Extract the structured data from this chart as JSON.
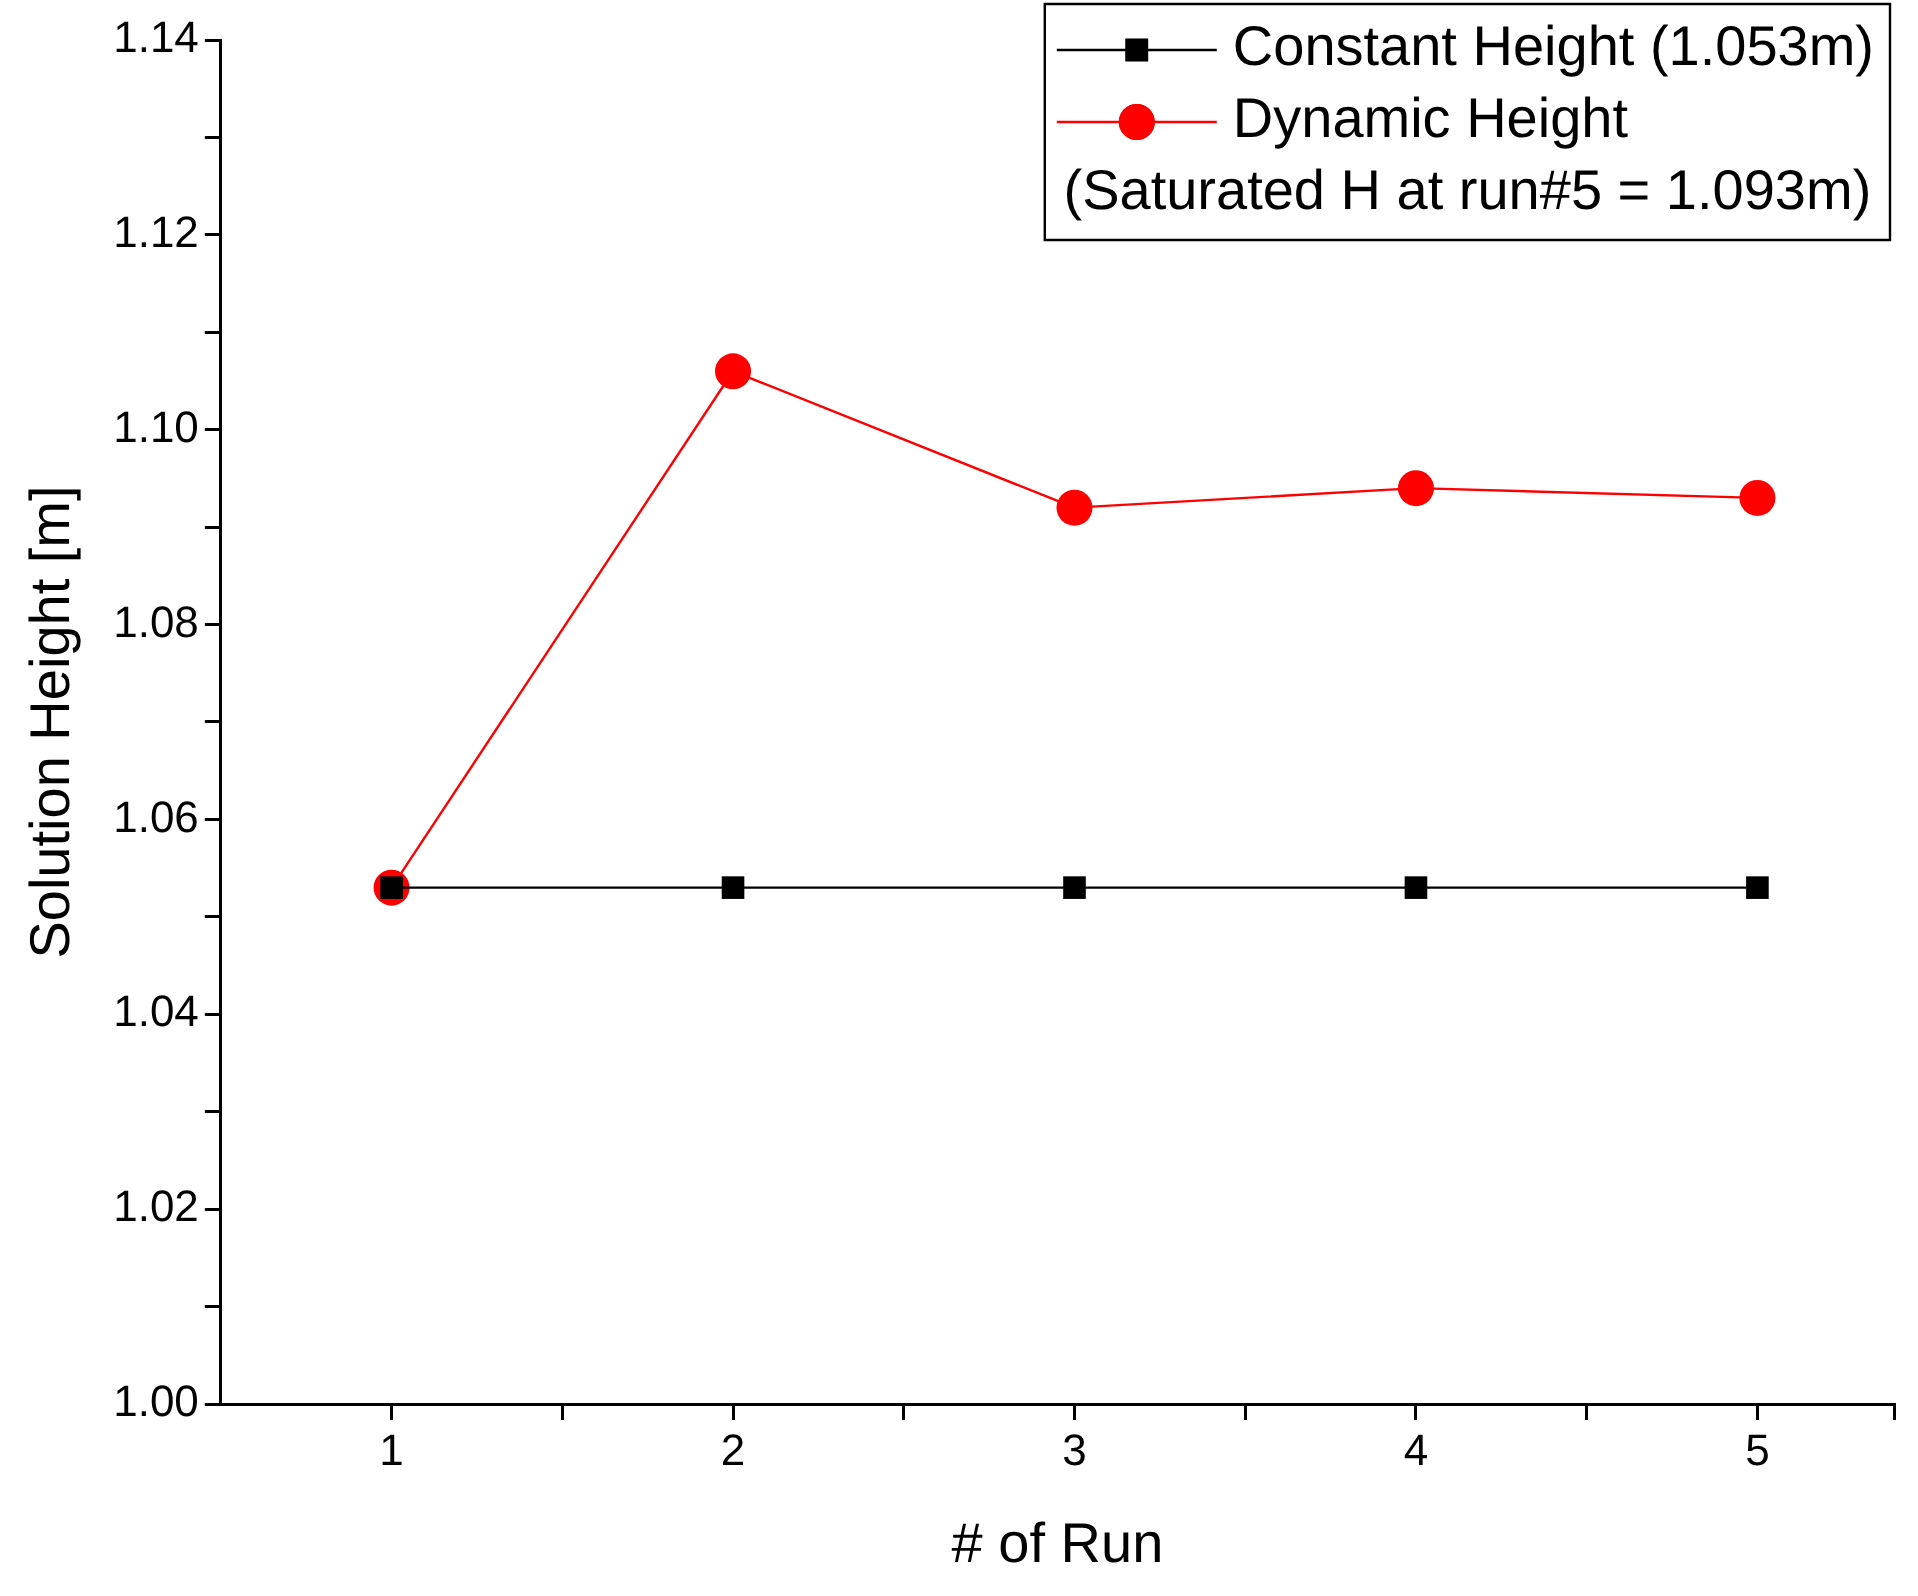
{
  "chart_data": {
    "type": "line",
    "xlabel": "# of Run",
    "ylabel": "Solution Height [m]",
    "x": [
      1,
      2,
      3,
      4,
      5
    ],
    "series": [
      {
        "name": "Constant Height (1.053m)",
        "color": "#000000",
        "marker": "square",
        "values": [
          1.053,
          1.053,
          1.053,
          1.053,
          1.053
        ]
      },
      {
        "name": "Dynamic Height",
        "color": "#ff0000",
        "marker": "circle",
        "values": [
          1.053,
          1.106,
          1.092,
          1.094,
          1.093
        ]
      }
    ],
    "annotations": [
      "(Saturated H at run#5 = 1.093m)"
    ],
    "xlim": [
      0.5,
      5.4
    ],
    "xticks": [
      1,
      {
        "value": 1.5,
        "label": null
      },
      2,
      {
        "value": 2.5,
        "label": null
      },
      3,
      {
        "value": 3.5,
        "label": null
      },
      4,
      {
        "value": 4.5,
        "label": null
      },
      5,
      {
        "value": 5.4,
        "label": null
      }
    ],
    "ylim": [
      1.0,
      1.14
    ],
    "yticks": [
      {
        "value": 1.0,
        "label": "1.00"
      },
      {
        "value": 1.01,
        "label": null
      },
      {
        "value": 1.02,
        "label": "1.02"
      },
      {
        "value": 1.03,
        "label": null
      },
      {
        "value": 1.04,
        "label": "1.04"
      },
      {
        "value": 1.05,
        "label": null
      },
      {
        "value": 1.06,
        "label": "1.06"
      },
      {
        "value": 1.07,
        "label": null
      },
      {
        "value": 1.08,
        "label": "1.08"
      },
      {
        "value": 1.09,
        "label": null
      },
      {
        "value": 1.1,
        "label": "1.10"
      },
      {
        "value": 1.11,
        "label": null
      },
      {
        "value": 1.12,
        "label": "1.12"
      },
      {
        "value": 1.13,
        "label": null
      },
      {
        "value": 1.14,
        "label": "1.14"
      }
    ],
    "grid": false,
    "legend": "top right",
    "line_style": "solid"
  }
}
